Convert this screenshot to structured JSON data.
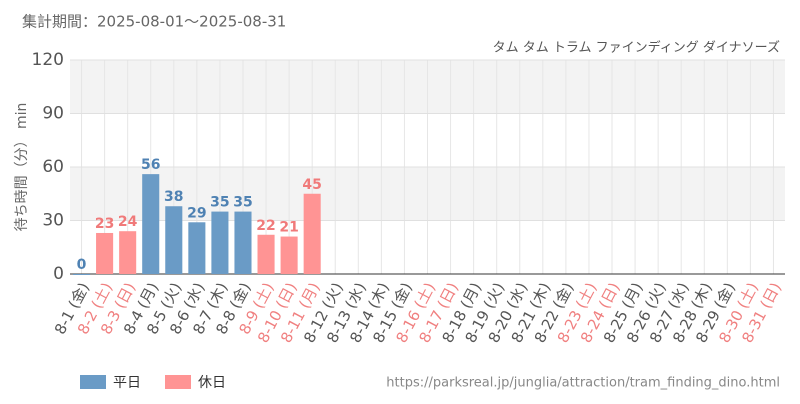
{
  "header": "集計期間：2025-08-01～2025-08-31",
  "chart_data": {
    "type": "bar",
    "title": "タム タム トラム ファインディング ダイナソーズ",
    "y_label": "待ち時間（分） min",
    "categories": [
      "8-1 (金)",
      "8-2 (土)",
      "8-3 (日)",
      "8-4 (月)",
      "8-5 (火)",
      "8-6 (水)",
      "8-7 (木)",
      "8-8 (金)",
      "8-9 (土)",
      "8-10 (日)",
      "8-11 (月)",
      "8-12 (火)",
      "8-13 (水)",
      "8-14 (木)",
      "8-15 (金)",
      "8-16 (土)",
      "8-17 (日)",
      "8-18 (月)",
      "8-19 (火)",
      "8-20 (水)",
      "8-21 (木)",
      "8-22 (金)",
      "8-23 (土)",
      "8-24 (日)",
      "8-25 (月)",
      "8-26 (火)",
      "8-27 (水)",
      "8-28 (木)",
      "8-29 (金)",
      "8-30 (土)",
      "8-31 (日)"
    ],
    "label_colors": [
      "#555",
      "#f08080",
      "#f08080",
      "#555",
      "#555",
      "#555",
      "#555",
      "#555",
      "#f08080",
      "#f08080",
      "#f08080",
      "#555",
      "#555",
      "#555",
      "#555",
      "#f08080",
      "#f08080",
      "#555",
      "#555",
      "#555",
      "#555",
      "#555",
      "#f08080",
      "#f08080",
      "#555",
      "#555",
      "#555",
      "#555",
      "#555",
      "#f08080",
      "#f08080"
    ],
    "series": [
      {
        "name": "平日",
        "color": "#6a9bc6",
        "label_color": "#4f82b3",
        "values": [
          0,
          null,
          null,
          56,
          38,
          29,
          35,
          35,
          null,
          null,
          null,
          null,
          null,
          null,
          null,
          null,
          null,
          null,
          null,
          null,
          null,
          null,
          null,
          null,
          null,
          null,
          null,
          null,
          null,
          null,
          null
        ]
      },
      {
        "name": "休日",
        "color": "#ff9494",
        "label_color": "#f07a7a",
        "values": [
          null,
          23,
          24,
          null,
          null,
          null,
          null,
          null,
          22,
          21,
          45,
          null,
          null,
          null,
          null,
          null,
          null,
          null,
          null,
          null,
          null,
          null,
          null,
          null,
          null,
          null,
          null,
          null,
          null,
          null,
          null
        ]
      }
    ],
    "ylim": [
      0,
      120
    ],
    "yticks": [
      0,
      30,
      60,
      90,
      120
    ],
    "grid": true
  },
  "footer": "https://parksreal.jp/junglia/attraction/tram_finding_dino.html"
}
